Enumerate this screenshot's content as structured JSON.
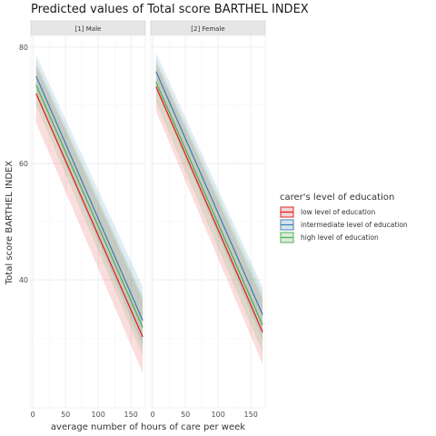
{
  "chart_data": {
    "type": "line",
    "title": "Predicted values of Total score BARTHEL INDEX",
    "xlabel": "average number of hours of care per week",
    "ylabel": "Total score BARTHEL INDEX",
    "xlim": [
      -3,
      172
    ],
    "ylim": [
      18,
      82
    ],
    "x_ticks": [
      0,
      50,
      100,
      150
    ],
    "x_tick_labels": [
      "0",
      "50",
      "100",
      "150"
    ],
    "y_ticks": [
      40,
      60,
      80
    ],
    "y_tick_labels": [
      "40",
      "60",
      "80"
    ],
    "grid": true,
    "legend": {
      "title": "carer's level of education",
      "position": "right"
    },
    "facets": [
      {
        "label": "[1] Male",
        "series": [
          {
            "name": "low level of education",
            "color": "#e41a1c",
            "x": [
              5,
              168
            ],
            "y": [
              72.0,
              30.2
            ],
            "lower": [
              67.0,
              24.0
            ],
            "upper": [
              76.8,
              36.5
            ]
          },
          {
            "name": "intermediate level of education",
            "color": "#377eb8",
            "x": [
              5,
              168
            ],
            "y": [
              75.0,
              33.0
            ],
            "lower": [
              71.8,
              28.6
            ],
            "upper": [
              78.6,
              38.8
            ]
          },
          {
            "name": "high level of education",
            "color": "#4daf4a",
            "x": [
              5,
              168
            ],
            "y": [
              73.5,
              31.8
            ],
            "lower": [
              70.0,
              27.0
            ],
            "upper": [
              77.5,
              37.2
            ]
          }
        ]
      },
      {
        "label": "[2] Female",
        "series": [
          {
            "name": "low level of education",
            "color": "#e41a1c",
            "x": [
              5,
              168
            ],
            "y": [
              73.2,
              31.0
            ],
            "lower": [
              69.0,
              25.5
            ],
            "upper": [
              77.3,
              36.6
            ]
          },
          {
            "name": "intermediate level of education",
            "color": "#377eb8",
            "x": [
              5,
              168
            ],
            "y": [
              75.8,
              34.0
            ],
            "lower": [
              72.8,
              29.6
            ],
            "upper": [
              79.0,
              38.7
            ]
          },
          {
            "name": "high level of education",
            "color": "#4daf4a",
            "x": [
              5,
              168
            ],
            "y": [
              74.0,
              32.2
            ],
            "lower": [
              70.5,
              27.5
            ],
            "upper": [
              77.8,
              37.7
            ]
          }
        ]
      }
    ],
    "legend_entries": [
      {
        "name": "low level of education",
        "color": "#e41a1c"
      },
      {
        "name": "intermediate level of education",
        "color": "#377eb8"
      },
      {
        "name": "high level of education",
        "color": "#4daf4a"
      }
    ]
  }
}
